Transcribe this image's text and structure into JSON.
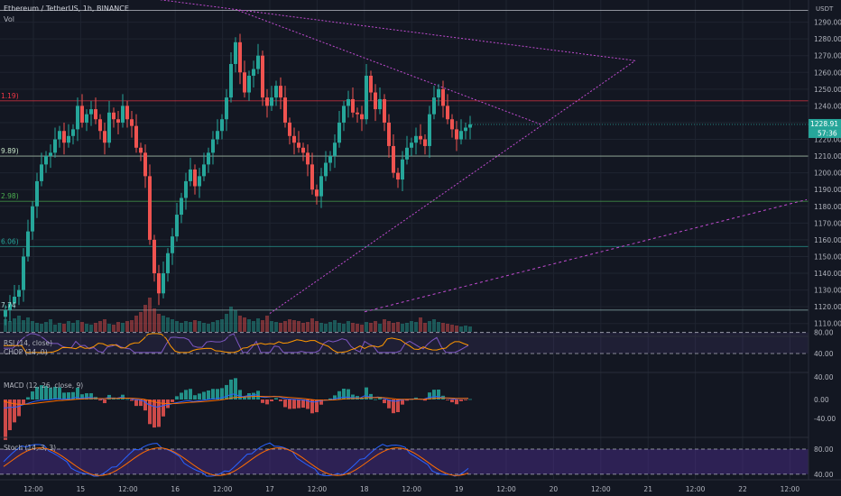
{
  "header": {
    "symbol": "Ethereum / TetherUS, 1h, BINANCE",
    "volume_label": "Vol",
    "currency": "USDT"
  },
  "price_tags": {
    "last": "1228.91",
    "countdown": "57:36"
  },
  "level_labels": [
    {
      "text": "1.19)",
      "price": 1243,
      "color": "#f23645"
    },
    {
      "text": "9.89)",
      "price": 1210,
      "color": "#c8e6c9"
    },
    {
      "text": "2.98)",
      "price": 1183,
      "color": "#4caf50"
    },
    {
      "text": "6.06)",
      "price": 1156,
      "color": "#26a69a"
    },
    {
      "text": "7.74",
      "price": 1118,
      "color": "#b2dfdb"
    }
  ],
  "indicators": {
    "rsi": "RSI (14, close)",
    "chop": "CHOP (14, 0)",
    "macd": "MACD (12, 26, close, 9)",
    "stoch": "Stoch (14, 3, 3)"
  },
  "colors": {
    "background": "#131722",
    "up": "#26a69a",
    "down": "#ef5350",
    "grid": "#1f2430",
    "trendline": "#c04bd0",
    "resistance": "#f23645",
    "support": "#4caf50"
  },
  "chart_data": {
    "type": "candlestick",
    "symbol": "ETHUSDT",
    "interval": "1h",
    "ylim": [
      1105,
      1300
    ],
    "yticks": [
      1290,
      1280,
      1270,
      1260,
      1250,
      1240,
      1230,
      1220,
      1210,
      1200,
      1190,
      1180,
      1170,
      1160,
      1150,
      1140,
      1130,
      1120,
      1110
    ],
    "xticks": [
      "12:00",
      "15",
      "12:00",
      "16",
      "12:00",
      "17",
      "12:00",
      "18",
      "12:00",
      "19",
      "12:00",
      "20",
      "12:00",
      "21",
      "12:00",
      "22",
      "12:00"
    ],
    "horizontal_levels": [
      1297,
      1243,
      1210,
      1183,
      1156,
      1118
    ],
    "close": [
      1118,
      1122,
      1126,
      1130,
      1150,
      1165,
      1180,
      1195,
      1205,
      1210,
      1212,
      1220,
      1225,
      1218,
      1222,
      1226,
      1240,
      1230,
      1235,
      1238,
      1232,
      1225,
      1218,
      1236,
      1232,
      1230,
      1240,
      1232,
      1228,
      1215,
      1212,
      1198,
      1160,
      1140,
      1128,
      1140,
      1152,
      1162,
      1175,
      1185,
      1195,
      1202,
      1192,
      1198,
      1205,
      1212,
      1220,
      1225,
      1232,
      1245,
      1265,
      1278,
      1260,
      1248,
      1258,
      1262,
      1270,
      1245,
      1240,
      1245,
      1252,
      1245,
      1230,
      1222,
      1218,
      1215,
      1212,
      1205,
      1190,
      1186,
      1198,
      1206,
      1210,
      1218,
      1230,
      1240,
      1244,
      1236,
      1235,
      1232,
      1258,
      1248,
      1238,
      1244,
      1230,
      1216,
      1200,
      1196,
      1208,
      1215,
      1218,
      1222,
      1220,
      1216,
      1235,
      1245,
      1250,
      1240,
      1232,
      1226,
      1220,
      1225,
      1227,
      1229
    ],
    "volume": [
      14,
      12,
      15,
      18,
      13,
      16,
      12,
      10,
      9,
      11,
      14,
      8,
      10,
      9,
      12,
      10,
      13,
      11,
      9,
      8,
      10,
      12,
      14,
      9,
      8,
      11,
      10,
      12,
      13,
      18,
      22,
      30,
      38,
      26,
      20,
      18,
      16,
      14,
      12,
      10,
      12,
      11,
      13,
      12,
      10,
      9,
      11,
      13,
      14,
      20,
      28,
      24,
      18,
      16,
      14,
      12,
      15,
      13,
      18,
      12,
      11,
      10,
      12,
      14,
      13,
      12,
      10,
      11,
      15,
      12,
      10,
      9,
      11,
      13,
      10,
      9,
      12,
      10,
      9,
      8,
      11,
      10,
      12,
      9,
      14,
      12,
      10,
      11,
      9,
      10,
      12,
      11,
      16,
      10,
      12,
      14,
      11,
      10,
      9,
      8,
      7,
      6,
      7,
      6
    ],
    "rsi_levels": [
      80,
      40
    ],
    "macd_levels": [
      40,
      0,
      -40
    ],
    "stoch_levels": [
      80,
      40
    ]
  }
}
